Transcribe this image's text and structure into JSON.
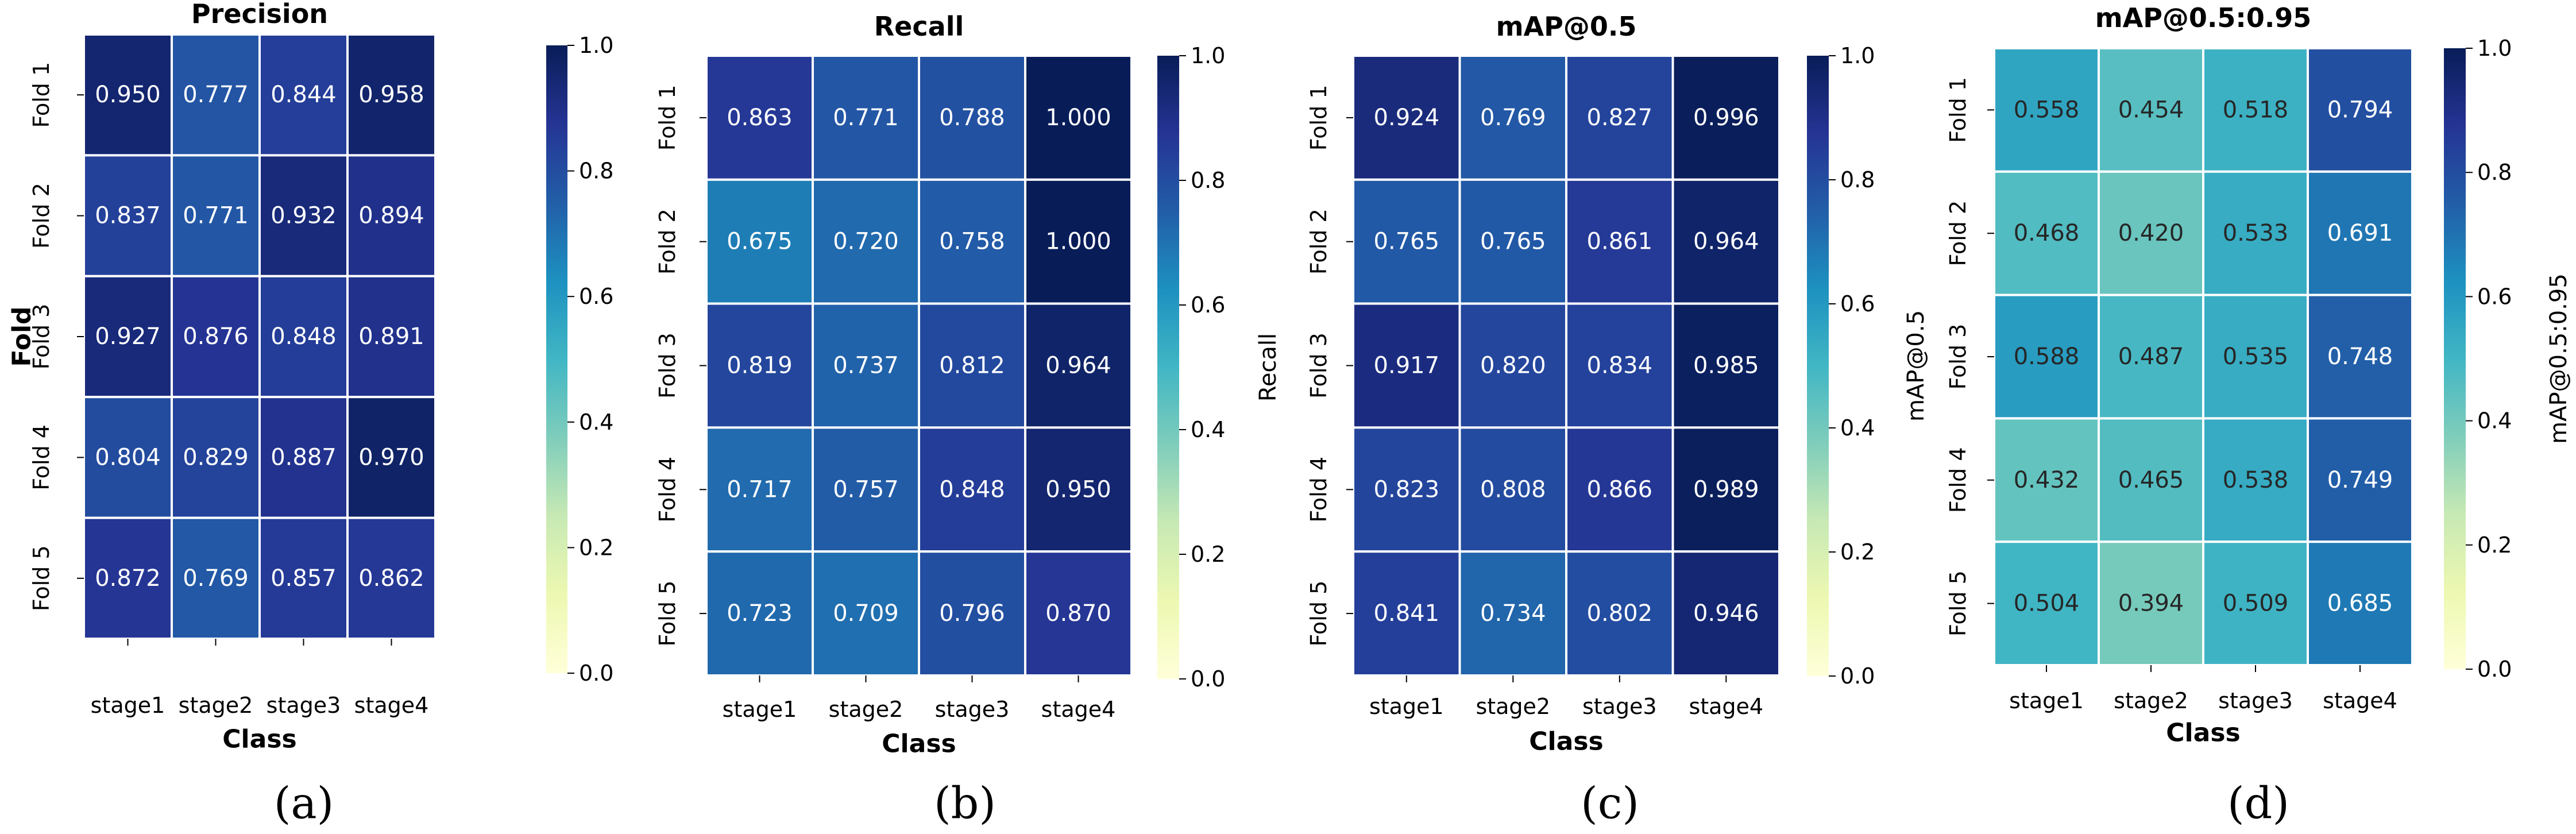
{
  "colorbar_ticks": [
    "0.0",
    "0.2",
    "0.4",
    "0.6",
    "0.8",
    "1.0"
  ],
  "colorscale": {
    "name": "YlGnBu",
    "stops": [
      "#ffffd9",
      "#edf8b1",
      "#c7e9b4",
      "#7fcdbb",
      "#41b6c4",
      "#1d91c0",
      "#225ea8",
      "#253494",
      "#081d58"
    ]
  },
  "chart_data": [
    {
      "type": "heatmap",
      "title": "Precision",
      "caption": "(a)",
      "xlabel": "Class",
      "ylabel": "Fold",
      "colorbar_label": "",
      "colorbar_range": [
        0,
        1
      ],
      "x": [
        "stage1",
        "stage2",
        "stage3",
        "stage4"
      ],
      "y": [
        "Fold 1",
        "Fold 2",
        "Fold 3",
        "Fold 4",
        "Fold 5"
      ],
      "values": [
        [
          0.95,
          0.777,
          0.844,
          0.958
        ],
        [
          0.837,
          0.771,
          0.932,
          0.894
        ],
        [
          0.927,
          0.876,
          0.848,
          0.891
        ],
        [
          0.804,
          0.829,
          0.887,
          0.97
        ],
        [
          0.872,
          0.769,
          0.857,
          0.862
        ]
      ],
      "labels": [
        [
          "0.950",
          "0.777",
          "0.844",
          "0.958"
        ],
        [
          "0.837",
          "0.771",
          "0.932",
          "0.894"
        ],
        [
          "0.927",
          "0.876",
          "0.848",
          "0.891"
        ],
        [
          "0.804",
          "0.829",
          "0.887",
          "0.970"
        ],
        [
          "0.872",
          "0.769",
          "0.857",
          "0.862"
        ]
      ]
    },
    {
      "type": "heatmap",
      "title": "Recall",
      "caption": "(b)",
      "xlabel": "Class",
      "ylabel": "",
      "colorbar_label": "Recall",
      "colorbar_range": [
        0,
        1
      ],
      "x": [
        "stage1",
        "stage2",
        "stage3",
        "stage4"
      ],
      "y": [
        "Fold 1",
        "Fold 2",
        "Fold 3",
        "Fold 4",
        "Fold 5"
      ],
      "values": [
        [
          0.863,
          0.771,
          0.788,
          1.0
        ],
        [
          0.675,
          0.72,
          0.758,
          1.0
        ],
        [
          0.819,
          0.737,
          0.812,
          0.964
        ],
        [
          0.717,
          0.757,
          0.848,
          0.95
        ],
        [
          0.723,
          0.709,
          0.796,
          0.87
        ]
      ],
      "labels": [
        [
          "0.863",
          "0.771",
          "0.788",
          "1.000"
        ],
        [
          "0.675",
          "0.720",
          "0.758",
          "1.000"
        ],
        [
          "0.819",
          "0.737",
          "0.812",
          "0.964"
        ],
        [
          "0.717",
          "0.757",
          "0.848",
          "0.950"
        ],
        [
          "0.723",
          "0.709",
          "0.796",
          "0.870"
        ]
      ]
    },
    {
      "type": "heatmap",
      "title": "mAP@0.5",
      "caption": "(c)",
      "xlabel": "Class",
      "ylabel": "",
      "colorbar_label": "mAP@0.5",
      "colorbar_range": [
        0,
        1
      ],
      "x": [
        "stage1",
        "stage2",
        "stage3",
        "stage4"
      ],
      "y": [
        "Fold 1",
        "Fold 2",
        "Fold 3",
        "Fold 4",
        "Fold 5"
      ],
      "values": [
        [
          0.924,
          0.769,
          0.827,
          0.996
        ],
        [
          0.765,
          0.765,
          0.861,
          0.964
        ],
        [
          0.917,
          0.82,
          0.834,
          0.985
        ],
        [
          0.823,
          0.808,
          0.866,
          0.989
        ],
        [
          0.841,
          0.734,
          0.802,
          0.946
        ]
      ],
      "labels": [
        [
          "0.924",
          "0.769",
          "0.827",
          "0.996"
        ],
        [
          "0.765",
          "0.765",
          "0.861",
          "0.964"
        ],
        [
          "0.917",
          "0.820",
          "0.834",
          "0.985"
        ],
        [
          "0.823",
          "0.808",
          "0.866",
          "0.989"
        ],
        [
          "0.841",
          "0.734",
          "0.802",
          "0.946"
        ]
      ]
    },
    {
      "type": "heatmap",
      "title": "mAP@0.5:0.95",
      "caption": "(d)",
      "xlabel": "Class",
      "ylabel": "",
      "colorbar_label": "mAP@0.5:0.95",
      "colorbar_range": [
        0,
        1
      ],
      "x": [
        "stage1",
        "stage2",
        "stage3",
        "stage4"
      ],
      "y": [
        "Fold 1",
        "Fold 2",
        "Fold 3",
        "Fold 4",
        "Fold 5"
      ],
      "values": [
        [
          0.558,
          0.454,
          0.518,
          0.794
        ],
        [
          0.468,
          0.42,
          0.533,
          0.691
        ],
        [
          0.588,
          0.487,
          0.535,
          0.748
        ],
        [
          0.432,
          0.465,
          0.538,
          0.749
        ],
        [
          0.504,
          0.394,
          0.509,
          0.685
        ]
      ],
      "labels": [
        [
          "0.558",
          "0.454",
          "0.518",
          "0.794"
        ],
        [
          "0.468",
          "0.420",
          "0.533",
          "0.691"
        ],
        [
          "0.588",
          "0.487",
          "0.535",
          "0.748"
        ],
        [
          "0.432",
          "0.465",
          "0.538",
          "0.749"
        ],
        [
          "0.504",
          "0.394",
          "0.509",
          "0.685"
        ]
      ]
    }
  ]
}
